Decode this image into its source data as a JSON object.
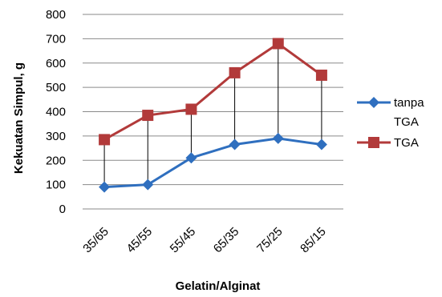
{
  "chart_data": {
    "type": "line",
    "xlabel": "Gelatin/Alginat",
    "ylabel": "Kekuatan Simpul, g",
    "ylim": [
      0,
      800
    ],
    "y_ticks": [
      0,
      100,
      200,
      300,
      400,
      500,
      600,
      700,
      800
    ],
    "y_tick_labels": [
      "0",
      "100",
      "200",
      "300",
      "400",
      "500",
      "600",
      "700",
      "800"
    ],
    "grid": "horizontal",
    "legend": "right",
    "categories": [
      "35/65",
      "45/55",
      "55/45",
      "65/35",
      "75/25",
      "85/15"
    ],
    "drop_lines": true,
    "series": [
      {
        "name": "tanpa TGA",
        "legend_lines": [
          "tanpa",
          "TGA"
        ],
        "values": [
          90,
          100,
          210,
          265,
          290,
          265
        ],
        "color": "#2F6FBF",
        "marker": "diamond"
      },
      {
        "name": "TGA",
        "legend_lines": [
          "TGA"
        ],
        "values": [
          285,
          385,
          410,
          560,
          680,
          550
        ],
        "color": "#B23A3A",
        "marker": "square"
      }
    ]
  }
}
